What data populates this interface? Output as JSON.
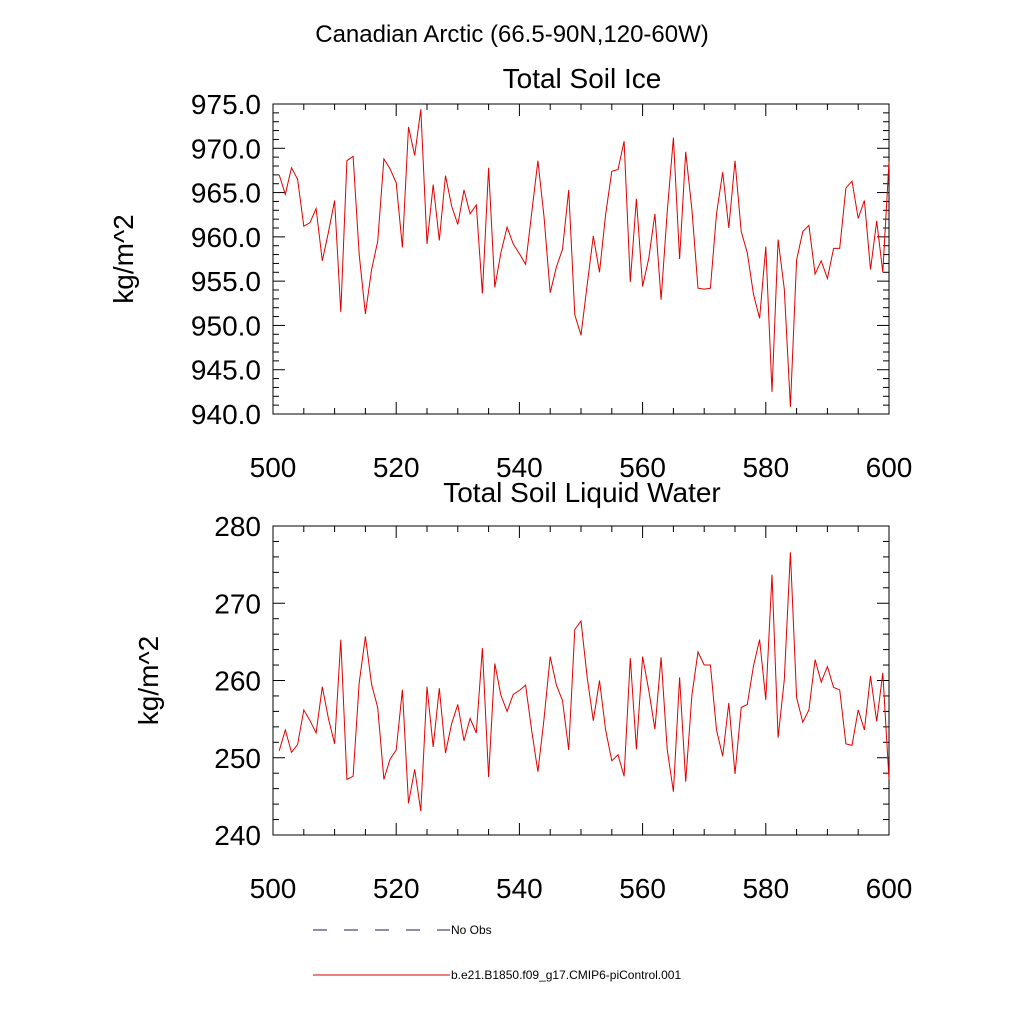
{
  "figure": {
    "suptitle": "Canadian Arctic (66.5-90N,120-60W)",
    "legend": [
      {
        "label": "No Obs",
        "color": "#1a1a6e",
        "dash": true
      },
      {
        "label": "b.e21.B1850.f09_g17.CMIP6-piControl.001",
        "color": "#e00000",
        "dash": false
      }
    ]
  },
  "chart_data": [
    {
      "type": "line",
      "title": "Total Soil Ice",
      "ylabel": "kg/m^2",
      "xlim": [
        500,
        600
      ],
      "ylim": [
        940,
        975
      ],
      "xticks": [
        500,
        520,
        540,
        560,
        580,
        600
      ],
      "xtick_labels": [
        "500",
        "520",
        "540",
        "560",
        "580",
        "600"
      ],
      "yticks": [
        940,
        945,
        950,
        955,
        960,
        965,
        970,
        975
      ],
      "ytick_labels": [
        "940.0",
        "945.0",
        "950.0",
        "955.0",
        "960.0",
        "965.0",
        "970.0",
        "975.0"
      ],
      "grid": false,
      "series": [
        {
          "name": "b.e21.B1850.f09_g17.CMIP6-piControl.001",
          "color": "#e00000",
          "x_start": 501,
          "x_step": 1,
          "values": [
            967.0,
            964.8,
            967.8,
            966.5,
            961.2,
            961.6,
            963.2,
            957.3,
            960.5,
            964.1,
            951.5,
            968.6,
            969.1,
            958.0,
            951.3,
            956.3,
            959.5,
            968.8,
            967.7,
            966.1,
            958.8,
            972.4,
            969.2,
            974.4,
            959.2,
            965.9,
            959.6,
            966.9,
            963.5,
            961.4,
            965.3,
            962.6,
            963.6,
            953.6,
            967.8,
            954.3,
            958.2,
            961.1,
            959.2,
            958.1,
            956.9,
            962.7,
            968.6,
            962.3,
            953.7,
            956.6,
            958.6,
            965.3,
            951.2,
            948.9,
            954.6,
            960.1,
            956.0,
            962.5,
            967.4,
            967.6,
            970.8,
            954.9,
            964.3,
            954.4,
            957.6,
            962.6,
            952.9,
            962.8,
            971.2,
            957.5,
            969.6,
            963.1,
            954.2,
            954.1,
            954.2,
            962.6,
            967.3,
            961.0,
            968.6,
            960.6,
            958.2,
            953.5,
            950.8,
            958.9,
            942.5,
            959.7,
            954.1,
            940.8,
            957.4,
            960.6,
            961.3,
            955.8,
            957.3,
            955.3,
            958.7,
            958.7,
            965.5,
            966.3,
            962.1,
            964.1,
            956.3,
            961.8,
            956.0,
            968.5
          ]
        }
      ]
    },
    {
      "type": "line",
      "title": "Total Soil Liquid Water",
      "ylabel": "kg/m^2",
      "xlim": [
        500,
        600
      ],
      "ylim": [
        240,
        280
      ],
      "xticks": [
        500,
        520,
        540,
        560,
        580,
        600
      ],
      "xtick_labels": [
        "500",
        "520",
        "540",
        "560",
        "580",
        "600"
      ],
      "yticks": [
        240,
        250,
        260,
        270,
        280
      ],
      "ytick_labels": [
        "240",
        "250",
        "260",
        "270",
        "280"
      ],
      "grid": false,
      "series": [
        {
          "name": "b.e21.B1850.f09_g17.CMIP6-piControl.001",
          "color": "#e00000",
          "x_start": 501,
          "x_step": 1,
          "values": [
            250.9,
            253.6,
            250.7,
            251.7,
            256.2,
            254.8,
            253.2,
            259.2,
            255.1,
            251.8,
            265.3,
            247.2,
            247.6,
            259.7,
            265.7,
            259.5,
            256.5,
            247.2,
            249.8,
            251.0,
            258.8,
            244.1,
            248.5,
            243.1,
            259.2,
            251.4,
            259.0,
            250.6,
            254.4,
            256.9,
            252.2,
            255.1,
            253.2,
            264.2,
            247.5,
            262.2,
            258.1,
            256.0,
            258.2,
            258.7,
            259.4,
            253.5,
            248.2,
            255.0,
            263.1,
            259.4,
            257.4,
            251.0,
            266.6,
            267.7,
            260.4,
            254.8,
            260.0,
            253.6,
            249.6,
            250.4,
            247.6,
            262.9,
            251.1,
            263.1,
            258.7,
            253.7,
            263.0,
            251.1,
            245.6,
            260.4,
            246.9,
            258.1,
            263.7,
            262.0,
            262.0,
            253.6,
            250.2,
            257.1,
            247.9,
            256.5,
            256.9,
            261.9,
            265.3,
            257.5,
            273.7,
            252.6,
            260.1,
            276.6,
            257.8,
            254.6,
            256.2,
            262.7,
            259.8,
            261.8,
            259.1,
            258.8,
            251.8,
            251.6,
            256.2,
            253.6,
            260.6,
            254.7,
            261.0,
            247.2
          ]
        }
      ]
    }
  ]
}
